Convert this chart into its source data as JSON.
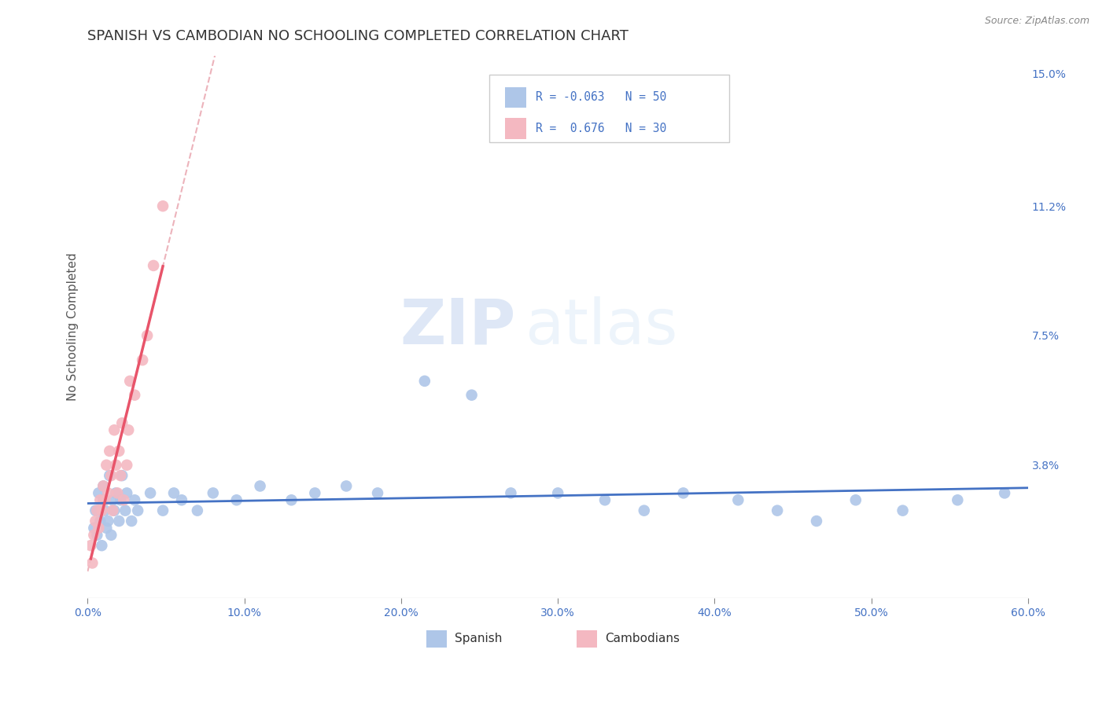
{
  "title": "SPANISH VS CAMBODIAN NO SCHOOLING COMPLETED CORRELATION CHART",
  "source": "Source: ZipAtlas.com",
  "ylabel": "No Schooling Completed",
  "xlim": [
    0.0,
    0.6
  ],
  "ylim": [
    0.0,
    0.155
  ],
  "xticks": [
    0.0,
    0.1,
    0.2,
    0.3,
    0.4,
    0.5,
    0.6
  ],
  "xticklabels": [
    "0.0%",
    "10.0%",
    "20.0%",
    "30.0%",
    "40.0%",
    "50.0%",
    "60.0%"
  ],
  "ytick_right_labels": [
    "15.0%",
    "11.2%",
    "7.5%",
    "3.8%"
  ],
  "ytick_right_vals": [
    0.15,
    0.112,
    0.075,
    0.038
  ],
  "r_spanish": -0.063,
  "n_spanish": 50,
  "r_cambodian": 0.676,
  "n_cambodian": 30,
  "spanish_color": "#aec6e8",
  "cambodian_color": "#f4b8c1",
  "spanish_line_color": "#4472c4",
  "cambodian_line_color": "#e8546a",
  "trendline_dashed_color": "#e8a0aa",
  "legend_text_color": "#4472c4",
  "watermark_zip": "ZIP",
  "watermark_atlas": "atlas",
  "title_fontsize": 13,
  "axis_label_fontsize": 11,
  "tick_fontsize": 10,
  "spanish_x": [
    0.004,
    0.005,
    0.006,
    0.007,
    0.008,
    0.009,
    0.01,
    0.01,
    0.011,
    0.012,
    0.013,
    0.014,
    0.015,
    0.016,
    0.017,
    0.018,
    0.02,
    0.021,
    0.022,
    0.024,
    0.025,
    0.028,
    0.03,
    0.032,
    0.04,
    0.048,
    0.055,
    0.06,
    0.07,
    0.08,
    0.095,
    0.11,
    0.13,
    0.145,
    0.165,
    0.185,
    0.215,
    0.245,
    0.27,
    0.3,
    0.33,
    0.355,
    0.38,
    0.415,
    0.44,
    0.465,
    0.49,
    0.52,
    0.555,
    0.585
  ],
  "spanish_y": [
    0.02,
    0.025,
    0.018,
    0.03,
    0.022,
    0.015,
    0.028,
    0.032,
    0.025,
    0.02,
    0.022,
    0.035,
    0.018,
    0.028,
    0.025,
    0.03,
    0.022,
    0.028,
    0.035,
    0.025,
    0.03,
    0.022,
    0.028,
    0.025,
    0.03,
    0.025,
    0.03,
    0.028,
    0.025,
    0.03,
    0.028,
    0.032,
    0.028,
    0.03,
    0.032,
    0.03,
    0.062,
    0.058,
    0.03,
    0.03,
    0.028,
    0.025,
    0.03,
    0.028,
    0.025,
    0.022,
    0.028,
    0.025,
    0.028,
    0.03
  ],
  "cambodian_x": [
    0.002,
    0.003,
    0.004,
    0.005,
    0.006,
    0.007,
    0.008,
    0.009,
    0.01,
    0.011,
    0.012,
    0.013,
    0.014,
    0.015,
    0.016,
    0.017,
    0.018,
    0.019,
    0.02,
    0.021,
    0.022,
    0.023,
    0.025,
    0.026,
    0.027,
    0.03,
    0.035,
    0.038,
    0.042,
    0.048
  ],
  "cambodian_y": [
    0.015,
    0.01,
    0.018,
    0.022,
    0.025,
    0.02,
    0.028,
    0.025,
    0.032,
    0.028,
    0.038,
    0.03,
    0.042,
    0.035,
    0.025,
    0.048,
    0.038,
    0.03,
    0.042,
    0.035,
    0.05,
    0.028,
    0.038,
    0.048,
    0.062,
    0.058,
    0.068,
    0.075,
    0.095,
    0.112
  ]
}
